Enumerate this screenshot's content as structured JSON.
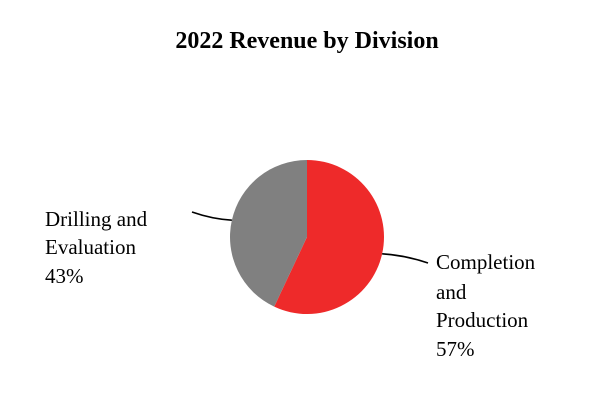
{
  "chart_data": {
    "type": "pie",
    "title": "2022 Revenue by Division",
    "slices": [
      {
        "name": "Completion and Production",
        "label_lines": [
          "Completion",
          "and",
          "Production"
        ],
        "percent_label": "57%",
        "value": 57,
        "color": "#ee2a2a"
      },
      {
        "name": "Drilling and Evaluation",
        "label_lines": [
          "Drilling and",
          "Evaluation"
        ],
        "percent_label": "43%",
        "value": 43,
        "color": "#808080"
      }
    ],
    "start_angle": "12 o'clock",
    "direction": "clockwise",
    "legend": "none",
    "label_style": "outside labels with leader lines"
  }
}
